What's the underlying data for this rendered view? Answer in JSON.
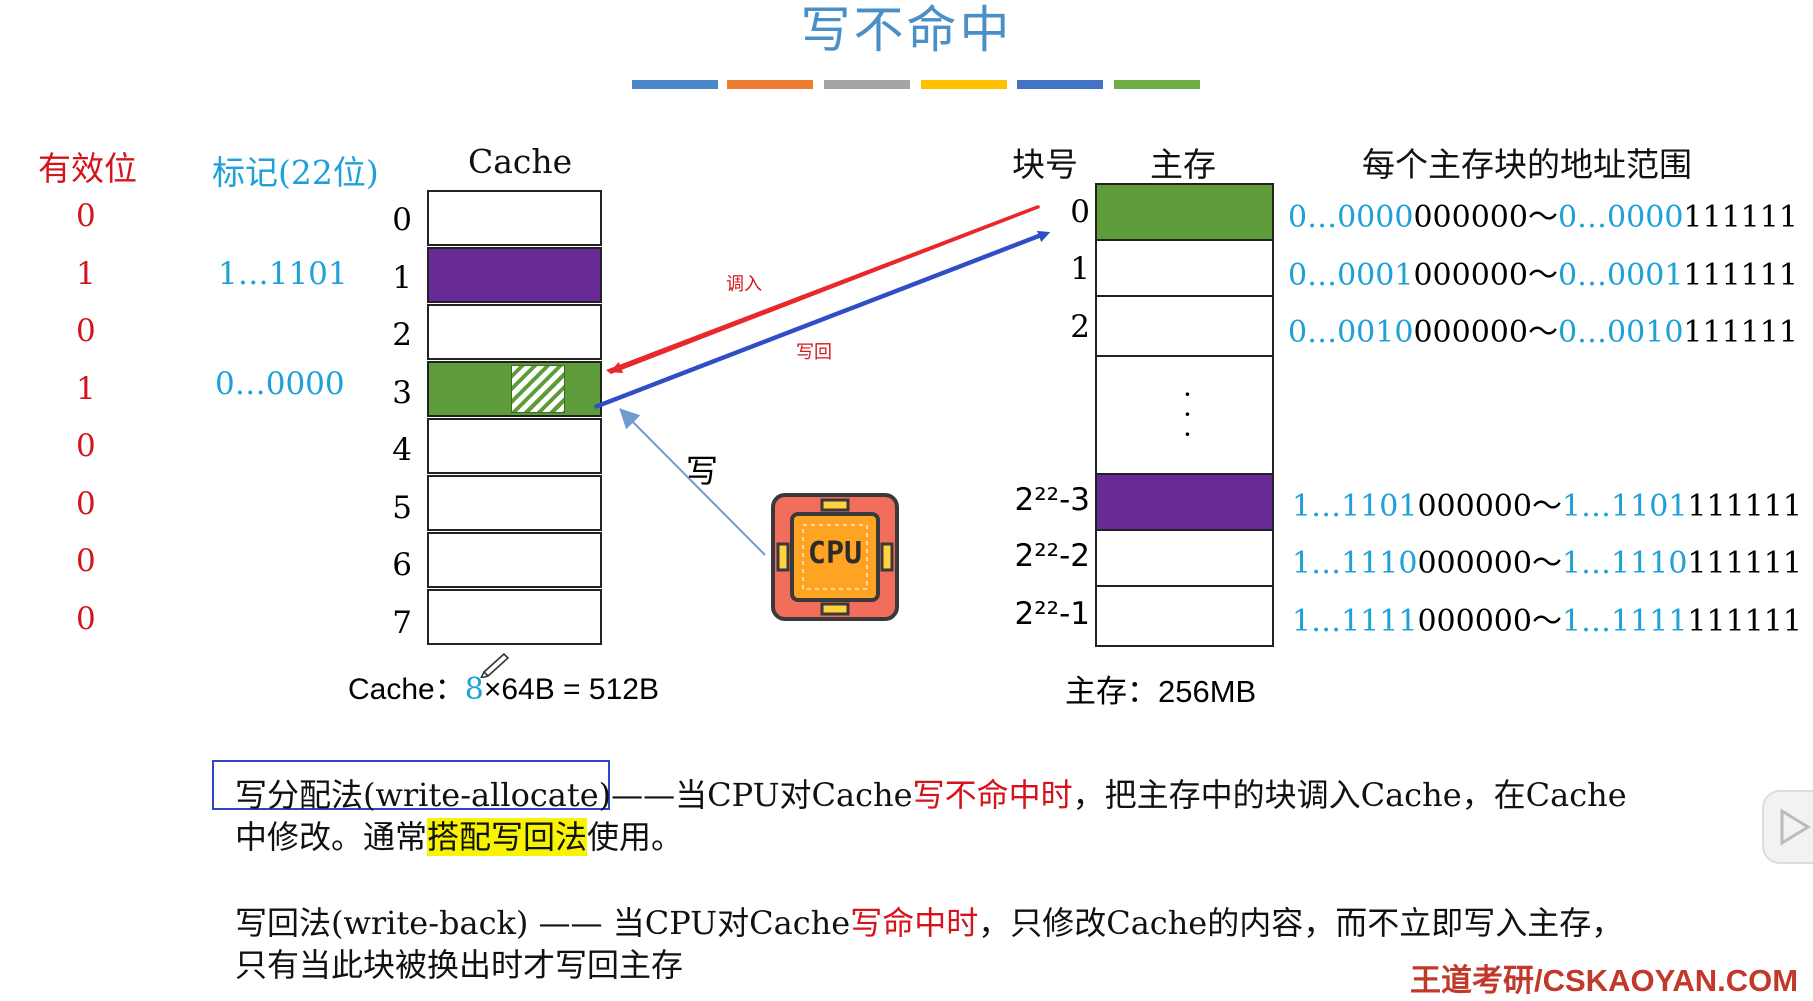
{
  "title": "写不命中",
  "title_bar_colors": [
    "#4a86c8",
    "#ed7d31",
    "#a5a5a5",
    "#ffc000",
    "#4472c4",
    "#70ad47"
  ],
  "left_headers": {
    "valid": "有效位",
    "tag": "标记(22位)",
    "cache": "Cache"
  },
  "valid_bits": [
    "0",
    "1",
    "0",
    "1",
    "0",
    "0",
    "0",
    "0"
  ],
  "tags": [
    {
      "row": 1,
      "text": "1…1101"
    },
    {
      "row": 3,
      "text": "0…0000"
    }
  ],
  "cache_rows": [
    {
      "index": "0",
      "color": "#ffffff"
    },
    {
      "index": "1",
      "color": "#6a2a95"
    },
    {
      "index": "2",
      "color": "#ffffff"
    },
    {
      "index": "3",
      "color": "#5e9c3a",
      "hatched": true
    },
    {
      "index": "4",
      "color": "#ffffff"
    },
    {
      "index": "5",
      "color": "#ffffff"
    },
    {
      "index": "6",
      "color": "#ffffff"
    },
    {
      "index": "7",
      "color": "#ffffff"
    }
  ],
  "cache_caption": {
    "prefix": "Cache：",
    "num": "8",
    "suffix": "×64B = 512B"
  },
  "right_headers": {
    "block": "块号",
    "memory": "主存",
    "range": "每个主存块的地址范围"
  },
  "memory_blocks": [
    {
      "label": "0",
      "color": "#5e9c3a",
      "from_blue": "0…0000",
      "from_black": "000000～",
      "to_blue": "0…0000",
      "to_black": "111111"
    },
    {
      "label": "1",
      "color": "#ffffff",
      "from_blue": "0…0001",
      "from_black": "000000～",
      "to_blue": "0…0001",
      "to_black": "111111"
    },
    {
      "label": "2",
      "color": "#ffffff",
      "from_blue": "0…0010",
      "from_black": "000000～",
      "to_blue": "0…0010",
      "to_black": "111111"
    },
    {
      "label": "⋮",
      "color": "#ffffff"
    },
    {
      "label": "2²²-3",
      "color": "#6a2a95",
      "from_blue": "1…1101",
      "from_black": "000000～",
      "to_blue": "1…1101",
      "to_black": "111111"
    },
    {
      "label": "2²²-2",
      "color": "#ffffff",
      "from_blue": "1…1110",
      "from_black": "000000～",
      "to_blue": "1…1110",
      "to_black": "111111"
    },
    {
      "label": "2²²-1",
      "color": "#ffffff",
      "from_blue": "1…1111",
      "from_black": "000000～",
      "to_blue": "1…1111",
      "to_black": "111111"
    }
  ],
  "memory_caption": "主存：256MB",
  "arrows": {
    "load": "调入",
    "writeback": "写回",
    "write": "写"
  },
  "cpu_label": "CPU",
  "paragraphs": {
    "p1_term": "写分配法(write-allocate)",
    "p1_dash": "——当CPU对Cache",
    "p1_red": "写不命中时",
    "p1_rest": "，把主存中的块调入Cache，在Cache",
    "p1_line2a": "中修改。通常",
    "p1_hl": "搭配写回法",
    "p1_line2b": "使用。",
    "p2_term": "写回法(write-back) —— 当CPU对Cache",
    "p2_red": "写命中时",
    "p2_rest": "，只修改Cache的内容，而不立即写入主存，",
    "p2_line2": "只有当此块被换出时才写回主存"
  },
  "watermark": "王道考研/CSKAOYAN.COM"
}
